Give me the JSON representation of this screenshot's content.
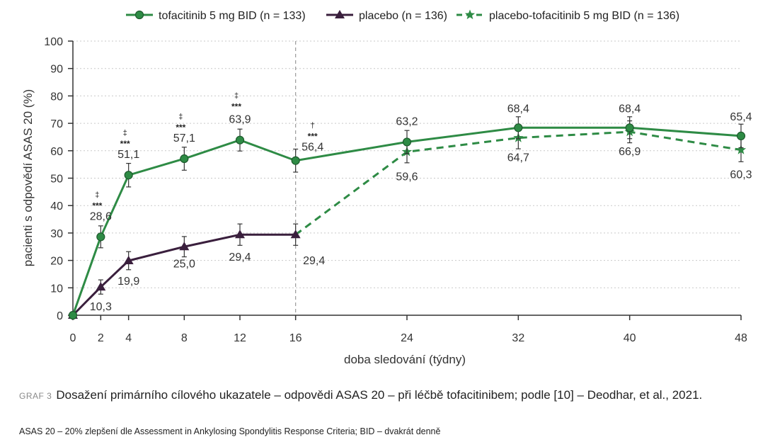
{
  "chart_data": {
    "type": "line",
    "xlabel": "doba sledování (týdny)",
    "ylabel": "pacienti s odpovědí ASAS 20 (%)",
    "xlim": [
      0,
      48
    ],
    "ylim": [
      0,
      100
    ],
    "x_ticks": [
      0,
      2,
      4,
      8,
      12,
      16,
      24,
      32,
      40,
      48
    ],
    "y_ticks": [
      0,
      10,
      20,
      30,
      40,
      50,
      60,
      70,
      80,
      90,
      100
    ],
    "grid": "horizontal dashed",
    "legend_position": "top",
    "reference_line_x": 16,
    "series": [
      {
        "name": "tofacitinib 5 mg BID (n = 133)",
        "marker": "circle",
        "line": "solid",
        "color": "#2e8b45",
        "x": [
          0,
          2,
          4,
          8,
          12,
          16,
          24,
          32,
          40,
          48
        ],
        "values": [
          0,
          28.6,
          51.1,
          57.1,
          63.9,
          56.4,
          63.2,
          68.4,
          68.4,
          65.4
        ],
        "error": [
          0,
          4,
          4.3,
          4.2,
          4,
          4.2,
          4.2,
          4,
          4,
          4.3
        ],
        "labels": [
          "",
          "28,6",
          "51,1",
          "57,1",
          "63,9",
          "56,4",
          "63,2",
          "68,4",
          "68,4",
          "65,4"
        ]
      },
      {
        "name": "placebo (n = 136)",
        "marker": "triangle",
        "line": "solid",
        "color": "#3a1f3d",
        "x": [
          0,
          2,
          4,
          8,
          12,
          16
        ],
        "values": [
          0,
          10.3,
          19.9,
          25.0,
          29.4,
          29.4
        ],
        "error": [
          0,
          2.6,
          3.3,
          3.7,
          3.9,
          3.9
        ],
        "labels": [
          "",
          "10,3",
          "19,9",
          "25,0",
          "29,4",
          "29,4"
        ]
      },
      {
        "name": "placebo-tofacitinib 5 mg BID (n = 136)",
        "marker": "star",
        "line": "dashed",
        "color": "#2e8b45",
        "x": [
          16,
          24,
          32,
          40,
          48
        ],
        "values": [
          29.4,
          59.6,
          64.7,
          66.9,
          60.3
        ],
        "error": [
          0,
          4,
          4,
          4,
          4.3
        ],
        "labels": [
          "",
          "59,6",
          "64,7",
          "66,9",
          "60,3"
        ]
      }
    ],
    "significance": [
      {
        "x": 2,
        "symbols": [
          "‡",
          "***"
        ]
      },
      {
        "x": 4,
        "symbols": [
          "‡",
          "***"
        ]
      },
      {
        "x": 8,
        "symbols": [
          "‡",
          "***"
        ]
      },
      {
        "x": 12,
        "symbols": [
          "‡",
          "***"
        ]
      },
      {
        "x": 16,
        "symbols": [
          "†",
          "***"
        ]
      }
    ]
  },
  "caption": {
    "number": "GRAF 3",
    "text": "Dosažení primárního cílového ukazatele – odpovědi ASAS 20 – při léčbě tofacitinibem; podle [10] – Deodhar, et al., 2021."
  },
  "footnote": "ASAS 20 – 20% zlepšení dle Assessment in Ankylosing Spondylitis Response Criteria; BID – dvakrát denně"
}
